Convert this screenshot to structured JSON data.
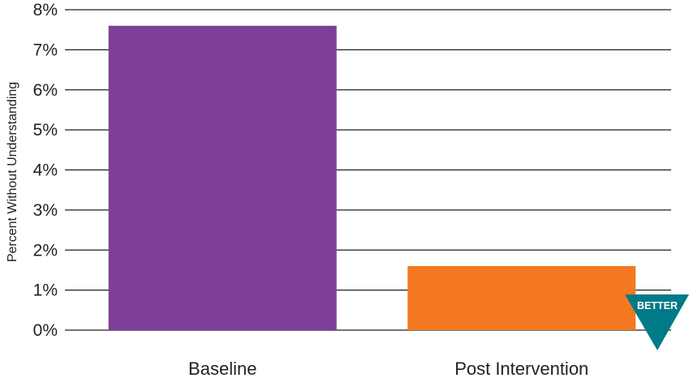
{
  "chart_data": {
    "type": "bar",
    "categories": [
      "Baseline",
      "Post Intervention"
    ],
    "values": [
      7.6,
      1.6
    ],
    "colors": [
      "#7f3f98",
      "#f47920"
    ],
    "ylabel": "Percent Without Understanding",
    "ylim": [
      0,
      8
    ],
    "yticks": [
      "0%",
      "1%",
      "2%",
      "3%",
      "4%",
      "5%",
      "6%",
      "7%",
      "8%"
    ],
    "grid": true,
    "legend": "none"
  },
  "badge": {
    "label": "BETTER",
    "icon": "better-direction-icon",
    "color": "#007a87"
  }
}
